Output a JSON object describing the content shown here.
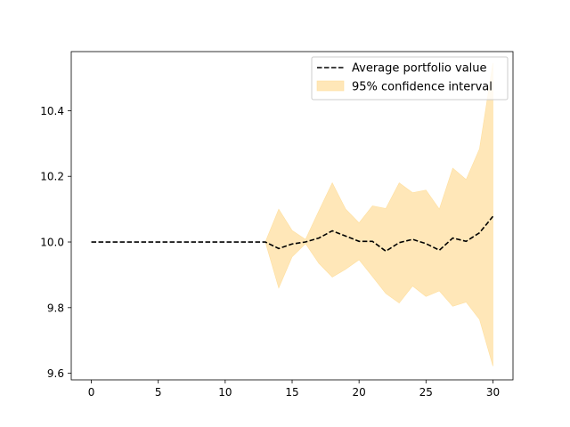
{
  "chart_data": {
    "type": "line",
    "title": "",
    "xlabel": "",
    "ylabel": "",
    "xlim": [
      -1.5,
      31.5
    ],
    "ylim": [
      9.58,
      10.58
    ],
    "xticks": [
      0,
      5,
      10,
      15,
      20,
      25,
      30
    ],
    "yticks": [
      9.6,
      9.8,
      10.0,
      10.2,
      10.4
    ],
    "ytick_labels": [
      "9.6",
      "9.8",
      "10.0",
      "10.2",
      "10.4"
    ],
    "grid": false,
    "legend_position": "top-right",
    "series": [
      {
        "name": "Average portfolio value",
        "style": "dashed",
        "color": "#000000",
        "x": [
          0,
          1,
          2,
          3,
          4,
          5,
          6,
          7,
          8,
          9,
          10,
          11,
          12,
          13,
          14,
          15,
          16,
          17,
          18,
          19,
          20,
          21,
          22,
          23,
          24,
          25,
          26,
          27,
          28,
          29,
          30
        ],
        "values": [
          10.0,
          10.0,
          10.0,
          10.0,
          10.0,
          10.0,
          10.0,
          10.0,
          10.0,
          10.0,
          10.0,
          10.0,
          10.0,
          10.0,
          9.98,
          9.994,
          10.0,
          10.012,
          10.034,
          10.018,
          10.002,
          10.002,
          9.972,
          9.998,
          10.008,
          9.995,
          9.975,
          10.012,
          10.002,
          10.028,
          10.078
        ]
      }
    ],
    "bands": [
      {
        "name": "95% confidence interval",
        "color": "#ffe7b8",
        "x": [
          13,
          14,
          15,
          16,
          17,
          18,
          19,
          20,
          21,
          22,
          23,
          24,
          25,
          26,
          27,
          28,
          29,
          30
        ],
        "lower": [
          10.0,
          9.86,
          9.955,
          9.995,
          9.935,
          9.893,
          9.917,
          9.946,
          9.895,
          9.843,
          9.814,
          9.866,
          9.834,
          9.851,
          9.804,
          9.817,
          9.764,
          9.622
        ],
        "upper": [
          10.0,
          10.1,
          10.035,
          10.008,
          10.095,
          10.18,
          10.1,
          10.058,
          10.11,
          10.102,
          10.18,
          10.15,
          10.158,
          10.1,
          10.225,
          10.19,
          10.284,
          10.545
        ]
      }
    ]
  }
}
